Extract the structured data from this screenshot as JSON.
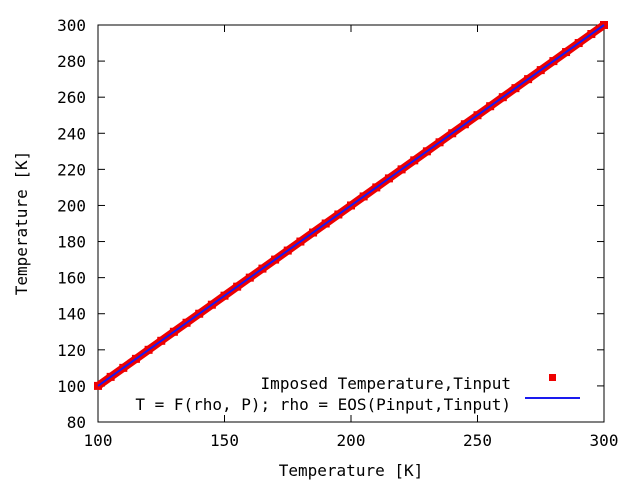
{
  "chart_data": {
    "type": "scatter",
    "title": "",
    "xlabel": "Temperature [K]",
    "ylabel": "Temperature [K]",
    "xlim": [
      100,
      300
    ],
    "ylim": [
      80,
      300
    ],
    "x_ticks": [
      100,
      150,
      200,
      250,
      300
    ],
    "y_ticks": [
      80,
      100,
      120,
      140,
      160,
      180,
      200,
      220,
      240,
      260,
      280,
      300
    ],
    "grid": false,
    "legend_placement": "bottom-right",
    "series": [
      {
        "name": "Imposed Temperature,Tinput",
        "style": "points",
        "marker": "square",
        "color": "#ee0000",
        "x": [
          100,
          105,
          110,
          115,
          120,
          125,
          130,
          135,
          140,
          145,
          150,
          155,
          160,
          165,
          170,
          175,
          180,
          185,
          190,
          195,
          200,
          205,
          210,
          215,
          220,
          225,
          230,
          235,
          240,
          245,
          250,
          255,
          260,
          265,
          270,
          275,
          280,
          285,
          290,
          295,
          300
        ],
        "y": [
          100,
          105,
          110,
          115,
          120,
          125,
          130,
          135,
          140,
          145,
          150,
          155,
          160,
          165,
          170,
          175,
          180,
          185,
          190,
          195,
          200,
          205,
          210,
          215,
          220,
          225,
          230,
          235,
          240,
          245,
          250,
          255,
          260,
          265,
          270,
          275,
          280,
          285,
          290,
          295,
          300
        ]
      },
      {
        "name": "T = F(rho, P); rho = EOS(Pinput,Tinput)",
        "style": "line",
        "color": "#1a1aee",
        "x": [
          100,
          300
        ],
        "y": [
          100,
          300
        ]
      }
    ]
  }
}
